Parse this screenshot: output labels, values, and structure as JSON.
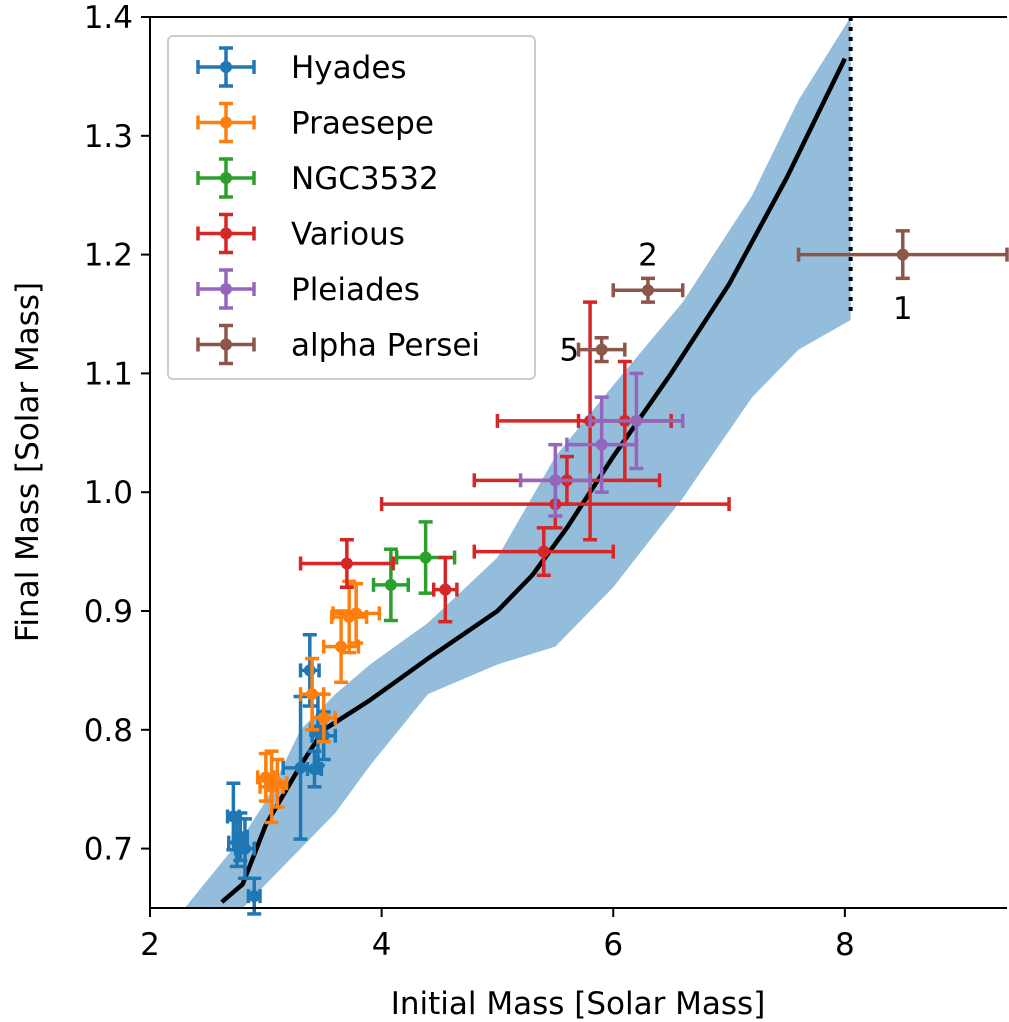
{
  "chart_data": {
    "type": "scatter",
    "xlabel": "Initial Mass [Solar Mass]",
    "ylabel": "Final Mass [Solar Mass]",
    "xlim": [
      2,
      9.4
    ],
    "ylim": [
      0.65,
      1.4
    ],
    "xticks": [
      "2",
      "4",
      "6",
      "8"
    ],
    "yticks": [
      "0.7",
      "0.8",
      "0.9",
      "1.0",
      "1.1",
      "1.2",
      "1.3",
      "1.4"
    ],
    "legend_position": "top-left",
    "series": [
      {
        "name": "Hyades",
        "color": "#1f77b4",
        "points": [
          {
            "x": 2.72,
            "y": 0.727,
            "xerr": 0.05,
            "yerr": 0.028
          },
          {
            "x": 2.75,
            "y": 0.705,
            "xerr": 0.07,
            "yerr": 0.02
          },
          {
            "x": 2.78,
            "y": 0.71,
            "xerr": 0.06,
            "yerr": 0.02
          },
          {
            "x": 2.82,
            "y": 0.7,
            "xerr": 0.08,
            "yerr": 0.025
          },
          {
            "x": 2.9,
            "y": 0.66,
            "xerr": 0.05,
            "yerr": 0.015
          },
          {
            "x": 3.3,
            "y": 0.768,
            "xerr": 0.15,
            "yerr": 0.06
          },
          {
            "x": 3.38,
            "y": 0.85,
            "xerr": 0.08,
            "yerr": 0.03
          },
          {
            "x": 3.42,
            "y": 0.767,
            "xerr": 0.06,
            "yerr": 0.015
          },
          {
            "x": 3.45,
            "y": 0.8,
            "xerr": 0.06,
            "yerr": 0.03
          },
          {
            "x": 3.5,
            "y": 0.795,
            "xerr": 0.1,
            "yerr": 0.02
          }
        ]
      },
      {
        "name": "Praesepe",
        "color": "#ff7f0e",
        "points": [
          {
            "x": 3.0,
            "y": 0.76,
            "xerr": 0.07,
            "yerr": 0.02
          },
          {
            "x": 3.05,
            "y": 0.752,
            "xerr": 0.1,
            "yerr": 0.03
          },
          {
            "x": 3.1,
            "y": 0.755,
            "xerr": 0.08,
            "yerr": 0.02
          },
          {
            "x": 3.4,
            "y": 0.83,
            "xerr": 0.1,
            "yerr": 0.03
          },
          {
            "x": 3.5,
            "y": 0.81,
            "xerr": 0.1,
            "yerr": 0.02
          },
          {
            "x": 3.65,
            "y": 0.87,
            "xerr": 0.15,
            "yerr": 0.03
          },
          {
            "x": 3.72,
            "y": 0.895,
            "xerr": 0.15,
            "yerr": 0.03
          },
          {
            "x": 3.78,
            "y": 0.898,
            "xerr": 0.2,
            "yerr": 0.025
          }
        ]
      },
      {
        "name": "NGC3532",
        "color": "#2ca02c",
        "points": [
          {
            "x": 4.08,
            "y": 0.922,
            "xerr": 0.15,
            "yerr": 0.03
          },
          {
            "x": 4.38,
            "y": 0.945,
            "xerr": 0.25,
            "yerr": 0.03
          }
        ]
      },
      {
        "name": "Various",
        "color": "#d62728",
        "points": [
          {
            "x": 3.7,
            "y": 0.94,
            "xerr": 0.4,
            "yerr": 0.02
          },
          {
            "x": 4.55,
            "y": 0.918,
            "xerr": 0.1,
            "yerr": 0.027
          },
          {
            "x": 5.4,
            "y": 0.95,
            "xerr": 0.6,
            "yerr": 0.02
          },
          {
            "x": 5.5,
            "y": 0.99,
            "xerr": 1.5,
            "yerr": 0.02
          },
          {
            "x": 5.6,
            "y": 1.01,
            "xerr": 0.8,
            "yerr": 0.02
          },
          {
            "x": 5.8,
            "y": 1.06,
            "xerr": 0.8,
            "yerr": 0.1
          },
          {
            "x": 6.1,
            "y": 1.06,
            "xerr": 0.4,
            "yerr": 0.05
          }
        ]
      },
      {
        "name": "Pleiades",
        "color": "#9467bd",
        "points": [
          {
            "x": 5.5,
            "y": 1.01,
            "xerr": 0.3,
            "yerr": 0.03
          },
          {
            "x": 5.9,
            "y": 1.04,
            "xerr": 0.3,
            "yerr": 0.04
          },
          {
            "x": 6.2,
            "y": 1.06,
            "xerr": 0.4,
            "yerr": 0.04
          }
        ]
      },
      {
        "name": "alpha Persei",
        "color": "#8c564b",
        "points": [
          {
            "x": 8.5,
            "y": 1.2,
            "xerr": 0.9,
            "yerr": 0.02
          },
          {
            "x": 6.3,
            "y": 1.17,
            "xerr": 0.3,
            "yerr": 0.01
          },
          {
            "x": 5.9,
            "y": 1.12,
            "xerr": 0.2,
            "yerr": 0.01
          }
        ]
      }
    ],
    "annotations": [
      {
        "text": "1",
        "x": 8.5,
        "y": 1.155
      },
      {
        "text": "2",
        "x": 6.3,
        "y": 1.2
      },
      {
        "text": "5",
        "x": 5.62,
        "y": 1.12
      }
    ],
    "model_curve": {
      "color": "#000000",
      "x": [
        2.62,
        2.8,
        3.0,
        3.3,
        3.5,
        3.9,
        4.4,
        5.0,
        5.3,
        5.6,
        6.0,
        6.5,
        7.0,
        7.5,
        8.0
      ],
      "y": [
        0.655,
        0.67,
        0.72,
        0.77,
        0.8,
        0.825,
        0.86,
        0.9,
        0.93,
        0.97,
        1.03,
        1.1,
        1.175,
        1.265,
        1.365
      ]
    },
    "uncertainty_band": {
      "color": "#94bddb",
      "x": [
        2.3,
        2.8,
        3.0,
        3.3,
        3.6,
        3.9,
        4.4,
        5.0,
        5.5,
        6.0,
        6.6,
        7.2,
        7.6,
        8.05
      ],
      "upper": [
        0.65,
        0.71,
        0.74,
        0.8,
        0.83,
        0.855,
        0.89,
        0.945,
        1.03,
        1.09,
        1.16,
        1.25,
        1.33,
        1.4
      ],
      "lower": [
        0.65,
        0.65,
        0.67,
        0.7,
        0.73,
        0.77,
        0.83,
        0.855,
        0.87,
        0.92,
        0.995,
        1.08,
        1.12,
        1.145
      ]
    },
    "vertical_limit": {
      "x": 8.05,
      "y0": 1.15,
      "y1": 1.4,
      "style": "dotted"
    }
  }
}
